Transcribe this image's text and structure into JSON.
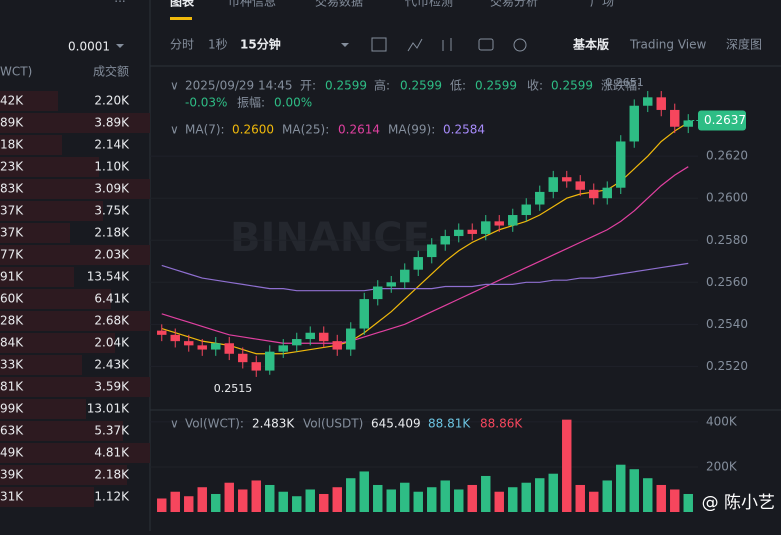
{
  "tabs": [
    "图表",
    "币种信息",
    "交易数据",
    "代币检测",
    "交易分析",
    "广场"
  ],
  "toolbar": {
    "intervals": [
      "分时",
      "1秒",
      "15分钟"
    ],
    "views": [
      "基本版",
      "Trading View",
      "深度图"
    ]
  },
  "order_book": {
    "precision": "0.0001",
    "headers": [
      "WCT)",
      "成交额"
    ],
    "rows": [
      [
        "42K",
        "2.20K"
      ],
      [
        "89K",
        "3.89K"
      ],
      [
        "18K",
        "2.14K"
      ],
      [
        "23K",
        "1.10K"
      ],
      [
        "83K",
        "3.09K"
      ],
      [
        "37K",
        "3.75K"
      ],
      [
        "37K",
        "2.18K"
      ],
      [
        "77K",
        "2.03K"
      ],
      [
        "91K",
        "13.54K"
      ],
      [
        "60K",
        "6.41K"
      ],
      [
        "28K",
        "2.68K"
      ],
      [
        "84K",
        "2.04K"
      ],
      [
        "33K",
        "2.43K"
      ],
      [
        "81K",
        "3.59K"
      ],
      [
        "99K",
        "13.01K"
      ],
      [
        "63K",
        "5.37K"
      ],
      [
        "49K",
        "4.81K"
      ],
      [
        "39K",
        "2.18K"
      ],
      [
        "31K",
        "1.12K"
      ]
    ]
  },
  "info": {
    "time": "2025/09/29 14:45",
    "open_label": "开:",
    "open": "0.2599",
    "high_label": "高:",
    "high": "0.2599",
    "low_label": "低:",
    "low": "0.2599",
    "close_label": "收:",
    "close": "0.2599",
    "change_label": "涨跌幅:",
    "change": "-0.03%",
    "amplitude_label": "振幅:",
    "amplitude": "0.00%"
  },
  "ma_legend": {
    "ma7_label": "MA(7):",
    "ma7": "0.2600",
    "ma25_label": "MA(25):",
    "ma25": "0.2614",
    "ma99_label": "MA(99):",
    "ma99": "0.2584"
  },
  "vol_legend": {
    "wct_label": "Vol(WCT):",
    "wct": "2.483K",
    "usdt_label": "Vol(USDT)",
    "usdt": "645.409",
    "ma1": "88.81K",
    "ma2": "88.86K"
  },
  "watermark": "BINANCE",
  "credit": "@ 陈小艺",
  "chart_data": [
    {
      "type": "candlestick",
      "ylim": [
        0.2504,
        0.2661
      ],
      "yticks": [
        {
          "value": 0.262,
          "label": "0.2620"
        },
        {
          "value": 0.26,
          "label": "0.2600"
        },
        {
          "value": 0.258,
          "label": "0.2580"
        },
        {
          "value": 0.256,
          "label": "0.2560"
        },
        {
          "value": 0.254,
          "label": "0.2540"
        },
        {
          "value": 0.252,
          "label": "0.2520"
        }
      ],
      "up_color": "#2ebd85",
      "down_color": "#f6465d",
      "open": [
        0.2537,
        0.2535,
        0.2532,
        0.253,
        0.2528,
        0.2531,
        0.2526,
        0.2522,
        0.2518,
        0.2527,
        0.253,
        0.2533,
        0.2536,
        0.2532,
        0.2528,
        0.2538,
        0.2552,
        0.2558,
        0.256,
        0.2566,
        0.2572,
        0.2578,
        0.2582,
        0.2585,
        0.2583,
        0.2589,
        0.2587,
        0.2592,
        0.2597,
        0.2603,
        0.261,
        0.2608,
        0.2604,
        0.26,
        0.2605,
        0.2627,
        0.2644,
        0.2648,
        0.2642,
        0.2634
      ],
      "high": [
        0.254,
        0.2538,
        0.2535,
        0.2533,
        0.2534,
        0.2534,
        0.2529,
        0.2525,
        0.253,
        0.2533,
        0.2536,
        0.2539,
        0.2539,
        0.2535,
        0.2541,
        0.2555,
        0.2561,
        0.2563,
        0.2569,
        0.2575,
        0.2581,
        0.2585,
        0.2588,
        0.2588,
        0.2592,
        0.2592,
        0.2595,
        0.26,
        0.2606,
        0.2613,
        0.2613,
        0.2611,
        0.2607,
        0.2608,
        0.263,
        0.2647,
        0.2651,
        0.2651,
        0.2645,
        0.264
      ],
      "low": [
        0.2532,
        0.2529,
        0.2527,
        0.2525,
        0.2525,
        0.2523,
        0.2519,
        0.2515,
        0.2516,
        0.2524,
        0.2527,
        0.253,
        0.2529,
        0.2525,
        0.2525,
        0.2535,
        0.2549,
        0.2555,
        0.2557,
        0.2563,
        0.2569,
        0.2575,
        0.2579,
        0.258,
        0.258,
        0.2584,
        0.2584,
        0.2589,
        0.2594,
        0.26,
        0.2605,
        0.2601,
        0.2597,
        0.2597,
        0.2602,
        0.2624,
        0.2641,
        0.2639,
        0.2631,
        0.2631
      ],
      "close": [
        0.2535,
        0.2532,
        0.253,
        0.2528,
        0.2531,
        0.2526,
        0.2522,
        0.2518,
        0.2527,
        0.253,
        0.2533,
        0.2536,
        0.2532,
        0.2528,
        0.2538,
        0.2552,
        0.2558,
        0.256,
        0.2566,
        0.2572,
        0.2578,
        0.2582,
        0.2585,
        0.2583,
        0.2589,
        0.2587,
        0.2592,
        0.2597,
        0.2603,
        0.261,
        0.2608,
        0.2604,
        0.26,
        0.2605,
        0.2627,
        0.2644,
        0.2648,
        0.2642,
        0.2634,
        0.2637
      ],
      "series": [
        {
          "name": "MA(7)",
          "color": "#f0b90b",
          "values": [
            0.2538,
            0.2536,
            0.2534,
            0.2532,
            0.2531,
            0.253,
            0.2528,
            0.2526,
            0.2526,
            0.2526,
            0.2527,
            0.2528,
            0.2529,
            0.253,
            0.2532,
            0.2536,
            0.2541,
            0.2546,
            0.2552,
            0.2558,
            0.2564,
            0.257,
            0.2575,
            0.2579,
            0.2582,
            0.2585,
            0.2587,
            0.2589,
            0.2592,
            0.2596,
            0.26,
            0.2602,
            0.2603,
            0.2604,
            0.2608,
            0.2614,
            0.262,
            0.2627,
            0.2632,
            0.2636
          ]
        },
        {
          "name": "MA(25)",
          "color": "#e040a0",
          "values": [
            0.2545,
            0.2543,
            0.2541,
            0.2539,
            0.2537,
            0.2535,
            0.2534,
            0.2533,
            0.2532,
            0.2531,
            0.2531,
            0.2531,
            0.2531,
            0.2531,
            0.2532,
            0.2534,
            0.2536,
            0.2538,
            0.254,
            0.2543,
            0.2546,
            0.2549,
            0.2552,
            0.2555,
            0.2558,
            0.2561,
            0.2564,
            0.2567,
            0.257,
            0.2573,
            0.2576,
            0.2579,
            0.2582,
            0.2585,
            0.2589,
            0.2594,
            0.26,
            0.2606,
            0.2611,
            0.2615
          ]
        },
        {
          "name": "MA(99)",
          "color": "#8e6fd0",
          "values": [
            0.2568,
            0.2566,
            0.2564,
            0.2562,
            0.2561,
            0.256,
            0.2559,
            0.2558,
            0.2557,
            0.2557,
            0.2556,
            0.2556,
            0.2556,
            0.2556,
            0.2556,
            0.2556,
            0.2557,
            0.2557,
            0.2557,
            0.2557,
            0.2557,
            0.2558,
            0.2558,
            0.2558,
            0.2559,
            0.2559,
            0.2559,
            0.256,
            0.256,
            0.2561,
            0.2561,
            0.2562,
            0.2562,
            0.2563,
            0.2564,
            0.2565,
            0.2566,
            0.2567,
            0.2568,
            0.2569
          ]
        }
      ],
      "max_label": "0.2651",
      "min_label": "0.2515",
      "last_price": {
        "value": 0.2637,
        "label": "0.2637"
      }
    },
    {
      "type": "volume",
      "ylim": [
        0,
        444000
      ],
      "yticks": [
        {
          "value": 400000,
          "label": "400K"
        },
        {
          "value": 200000,
          "label": "200K"
        }
      ],
      "values": [
        60000,
        90000,
        70000,
        110000,
        80000,
        130000,
        100000,
        140000,
        120000,
        90000,
        70000,
        100000,
        80000,
        110000,
        150000,
        180000,
        120000,
        100000,
        130000,
        90000,
        110000,
        140000,
        100000,
        120000,
        160000,
        90000,
        110000,
        130000,
        150000,
        170000,
        410000,
        120000,
        90000,
        140000,
        210000,
        190000,
        150000,
        120000,
        100000,
        80000
      ]
    }
  ]
}
